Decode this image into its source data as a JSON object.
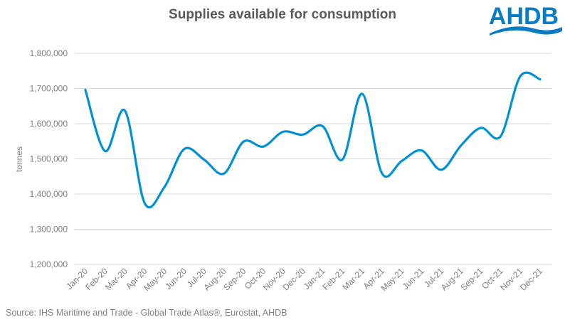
{
  "chart_data": {
    "type": "line",
    "title": "Supplies available for consumption",
    "xlabel": "",
    "ylabel": "tonnes",
    "categories": [
      "Jan-20",
      "Feb-20",
      "Mar-20",
      "Apr-20",
      "May-20",
      "Jun-20",
      "Jul-20",
      "Aug-20",
      "Sep-20",
      "Oct-20",
      "Nov-20",
      "Dec-20",
      "Jan-21",
      "Feb-21",
      "Mar-21",
      "Apr-21",
      "May-21",
      "Jun-21",
      "Jul-21",
      "Aug-21",
      "Sep-21",
      "Oct-21",
      "Nov-21",
      "Dec-21"
    ],
    "values": [
      1696000,
      1522000,
      1637000,
      1374000,
      1420000,
      1528000,
      1498000,
      1458000,
      1549000,
      1535000,
      1577000,
      1569000,
      1593000,
      1498000,
      1685000,
      1459000,
      1494000,
      1524000,
      1469000,
      1538000,
      1588000,
      1564000,
      1735000,
      1726000
    ],
    "ylim": [
      1200000,
      1800000
    ],
    "yticks": [
      "1,200,000",
      "1,300,000",
      "1,400,000",
      "1,500,000",
      "1,600,000",
      "1,700,000",
      "1,800,000"
    ],
    "grid": true,
    "smooth": true,
    "line_color": "#0090d4",
    "legend": "none"
  },
  "source": "Source: IHS Maritime and Trade  - Global Trade  Atlas®, Eurostat,  AHDB",
  "logo": {
    "text": "AHDB",
    "color": "#0a7dc2"
  }
}
